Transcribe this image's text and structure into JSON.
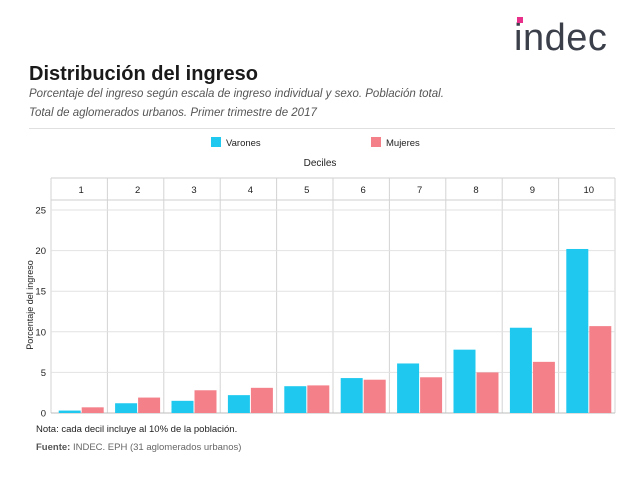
{
  "header": {
    "logo_text": "indec",
    "title": "Distribución del ingreso",
    "subtitle_line1": "Porcentaje del ingreso según escala de ingreso individual y sexo. Población total.",
    "subtitle_line2": "Total de aglomerados urbanos. Primer trimestre de 2017"
  },
  "colors": {
    "varones": "#1ec8ef",
    "mujeres": "#f4818a",
    "logo_text": "#3a3f4a",
    "logo_accent": "#e8308a"
  },
  "chart_data": {
    "type": "bar",
    "title": "",
    "xlabel": "Deciles",
    "ylabel": "Porcentaje del ingreso",
    "categories": [
      "1",
      "2",
      "3",
      "4",
      "5",
      "6",
      "7",
      "8",
      "9",
      "10"
    ],
    "series": [
      {
        "name": "Varones",
        "values": [
          0.3,
          1.2,
          1.5,
          2.2,
          3.3,
          4.3,
          6.1,
          7.8,
          10.5,
          20.2
        ]
      },
      {
        "name": "Mujeres",
        "values": [
          0.7,
          1.9,
          2.8,
          3.1,
          3.4,
          4.1,
          4.4,
          5.0,
          6.3,
          10.7
        ]
      }
    ],
    "ylim": [
      0,
      25
    ],
    "yticks": [
      "0",
      "5",
      "10",
      "15",
      "20",
      "25"
    ],
    "legend_position": "top",
    "grid": true
  },
  "footer": {
    "note": "Nota: cada decil incluye al 10% de la población.",
    "source_label": "Fuente:",
    "source_text": "INDEC. EPH (31 aglomerados urbanos)"
  }
}
